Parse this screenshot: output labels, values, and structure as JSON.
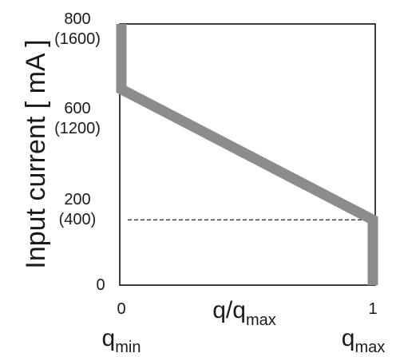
{
  "chart_data": {
    "type": "line",
    "ylabel": "Input current [ mA ]",
    "xlabel": {
      "main": "q/q",
      "sub": "max"
    },
    "x_ticks": [
      {
        "value": 0,
        "label": "0"
      },
      {
        "value": 1,
        "label": "1"
      }
    ],
    "y_ticks": [
      {
        "value": 0,
        "label": "0",
        "alt": ""
      },
      {
        "value": 200,
        "label": "200",
        "alt": "(400)"
      },
      {
        "value": 600,
        "label": "600",
        "alt": "(1200)"
      },
      {
        "value": 800,
        "label": "800",
        "alt": "(1600)"
      }
    ],
    "xlim": [
      0,
      1
    ],
    "ylim": [
      0,
      800
    ],
    "series": [
      {
        "x": [
          0,
          0,
          1,
          1
        ],
        "y": [
          800,
          600,
          200,
          0
        ]
      }
    ],
    "reference_line": {
      "y": 200,
      "x_from": 0,
      "x_to": 1,
      "style": "dashed"
    },
    "end_labels": {
      "min": {
        "main": "q",
        "sub": "min"
      },
      "max": {
        "main": "q",
        "sub": "max"
      }
    },
    "colors": {
      "series": "#8c8c8c",
      "axes": "#111111",
      "reference": "#222222"
    }
  }
}
